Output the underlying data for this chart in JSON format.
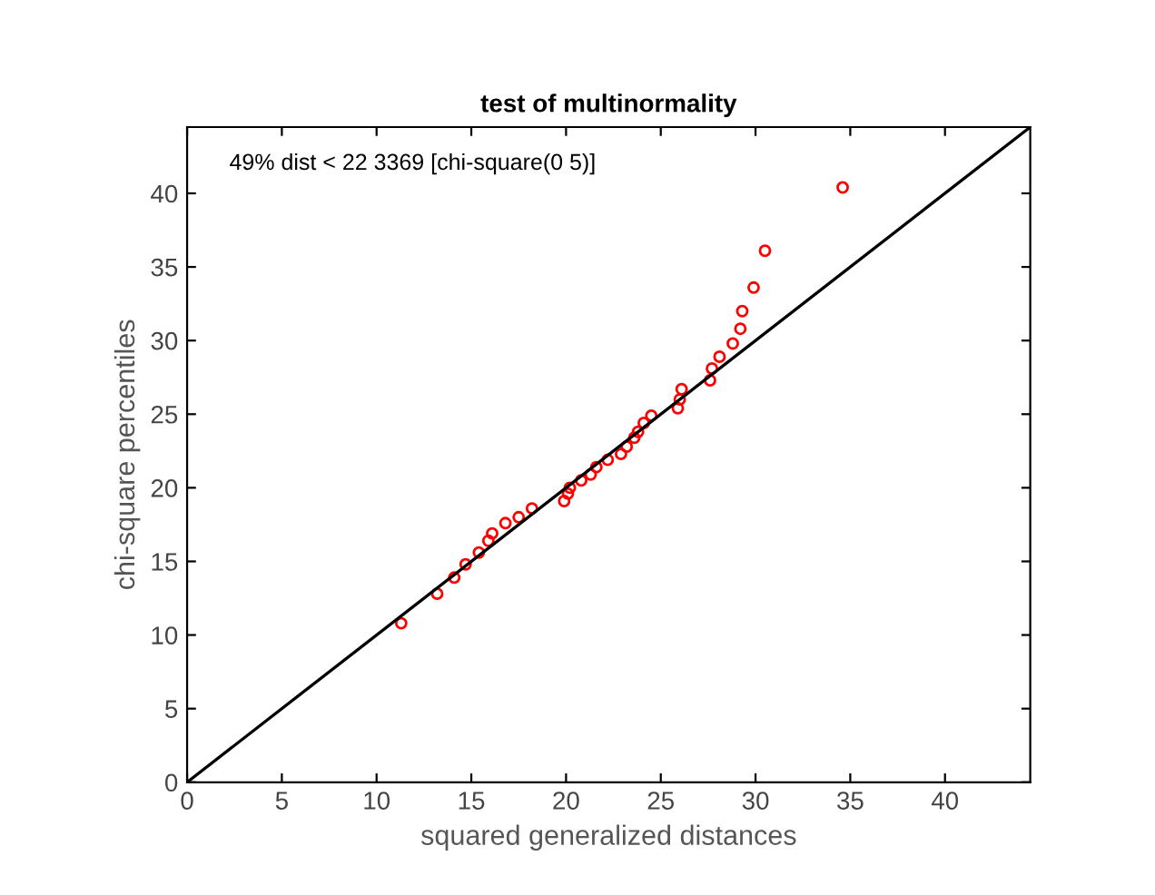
{
  "chart_data": {
    "type": "scatter",
    "title": "test of multinormality",
    "xlabel": "squared generalized distances",
    "ylabel": "chi-square percentiles",
    "annotations": [
      "49% dist < 22 3369 [chi-square(0 5)]"
    ],
    "xlim": [
      0,
      44.5
    ],
    "ylim": [
      0,
      44.5
    ],
    "xticks": [
      0,
      5,
      10,
      15,
      20,
      25,
      30,
      35,
      40
    ],
    "yticks": [
      0,
      5,
      10,
      15,
      20,
      25,
      30,
      35,
      40
    ],
    "grid": false,
    "marker": "circle",
    "series": [
      {
        "color": "#ff0000",
        "x": [
          11.3,
          13.2,
          14.1,
          14.7,
          15.4,
          15.9,
          16.1,
          16.8,
          17.5,
          18.2,
          19.9,
          20.1,
          20.2,
          20.8,
          21.3,
          21.6,
          22.2,
          22.9,
          23.2,
          23.6,
          23.8,
          24.1,
          24.5,
          25.9,
          26.0,
          26.1,
          27.6,
          27.7,
          28.1,
          28.8,
          29.2,
          29.3,
          29.9,
          30.5,
          34.6
        ],
        "values": [
          10.8,
          12.8,
          13.9,
          14.8,
          15.6,
          16.4,
          16.9,
          17.6,
          18.0,
          18.6,
          19.1,
          19.6,
          20.0,
          20.5,
          20.9,
          21.4,
          21.9,
          22.3,
          22.8,
          23.4,
          23.8,
          24.4,
          24.9,
          25.4,
          26.0,
          26.7,
          27.3,
          28.1,
          28.9,
          29.8,
          30.8,
          32.0,
          33.6,
          36.1,
          40.4
        ]
      },
      {
        "type": "line",
        "color": "#000000",
        "marker": "none",
        "x": [
          0,
          44.5
        ],
        "values": [
          0,
          44.5
        ]
      }
    ]
  }
}
